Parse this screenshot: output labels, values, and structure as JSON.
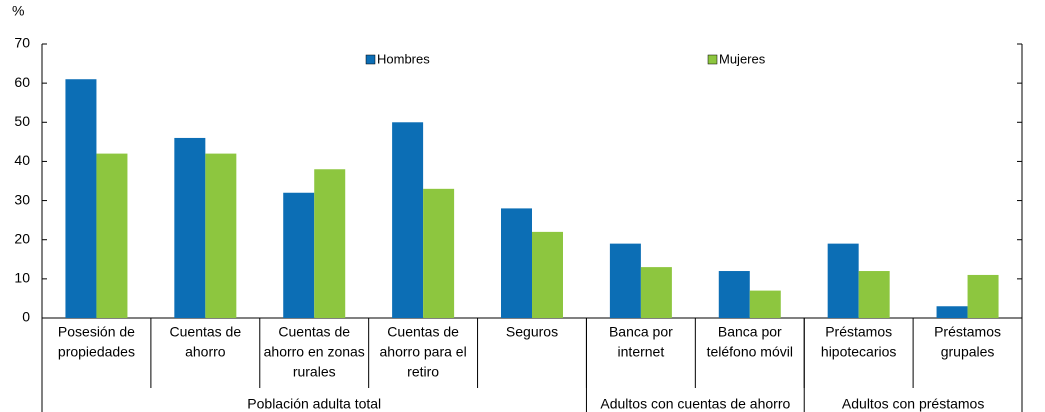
{
  "chart_data": {
    "type": "bar",
    "y_unit": "%",
    "categories": [
      [
        "Posesión de",
        "propiedades"
      ],
      [
        "Cuentas de",
        "ahorro"
      ],
      [
        "Cuentas de",
        "ahorro en zonas",
        "rurales"
      ],
      [
        "Cuentas de",
        "ahorro para el",
        "retiro"
      ],
      [
        "Seguros"
      ],
      [
        "Banca por",
        "internet"
      ],
      [
        "Banca por",
        "teléfono móvil"
      ],
      [
        "Préstamos",
        "hipotecarios"
      ],
      [
        "Préstamos",
        "grupales"
      ]
    ],
    "groups": [
      {
        "label": "Población adulta total",
        "count": 5
      },
      {
        "label": "Adultos con cuentas de ahorro",
        "count": 2
      },
      {
        "label": "Adultos con préstamos",
        "count": 2
      }
    ],
    "series": [
      {
        "name": "Hombres",
        "color": "#0c6eb5",
        "values": [
          61,
          46,
          32,
          50,
          28,
          19,
          12,
          19,
          3
        ]
      },
      {
        "name": "Mujeres",
        "color": "#8dc63f",
        "values": [
          42,
          42,
          38,
          33,
          22,
          13,
          7,
          12,
          11
        ]
      }
    ],
    "ylim": [
      0,
      70
    ],
    "yticks": [
      0,
      10,
      20,
      30,
      40,
      50,
      60,
      70
    ]
  }
}
